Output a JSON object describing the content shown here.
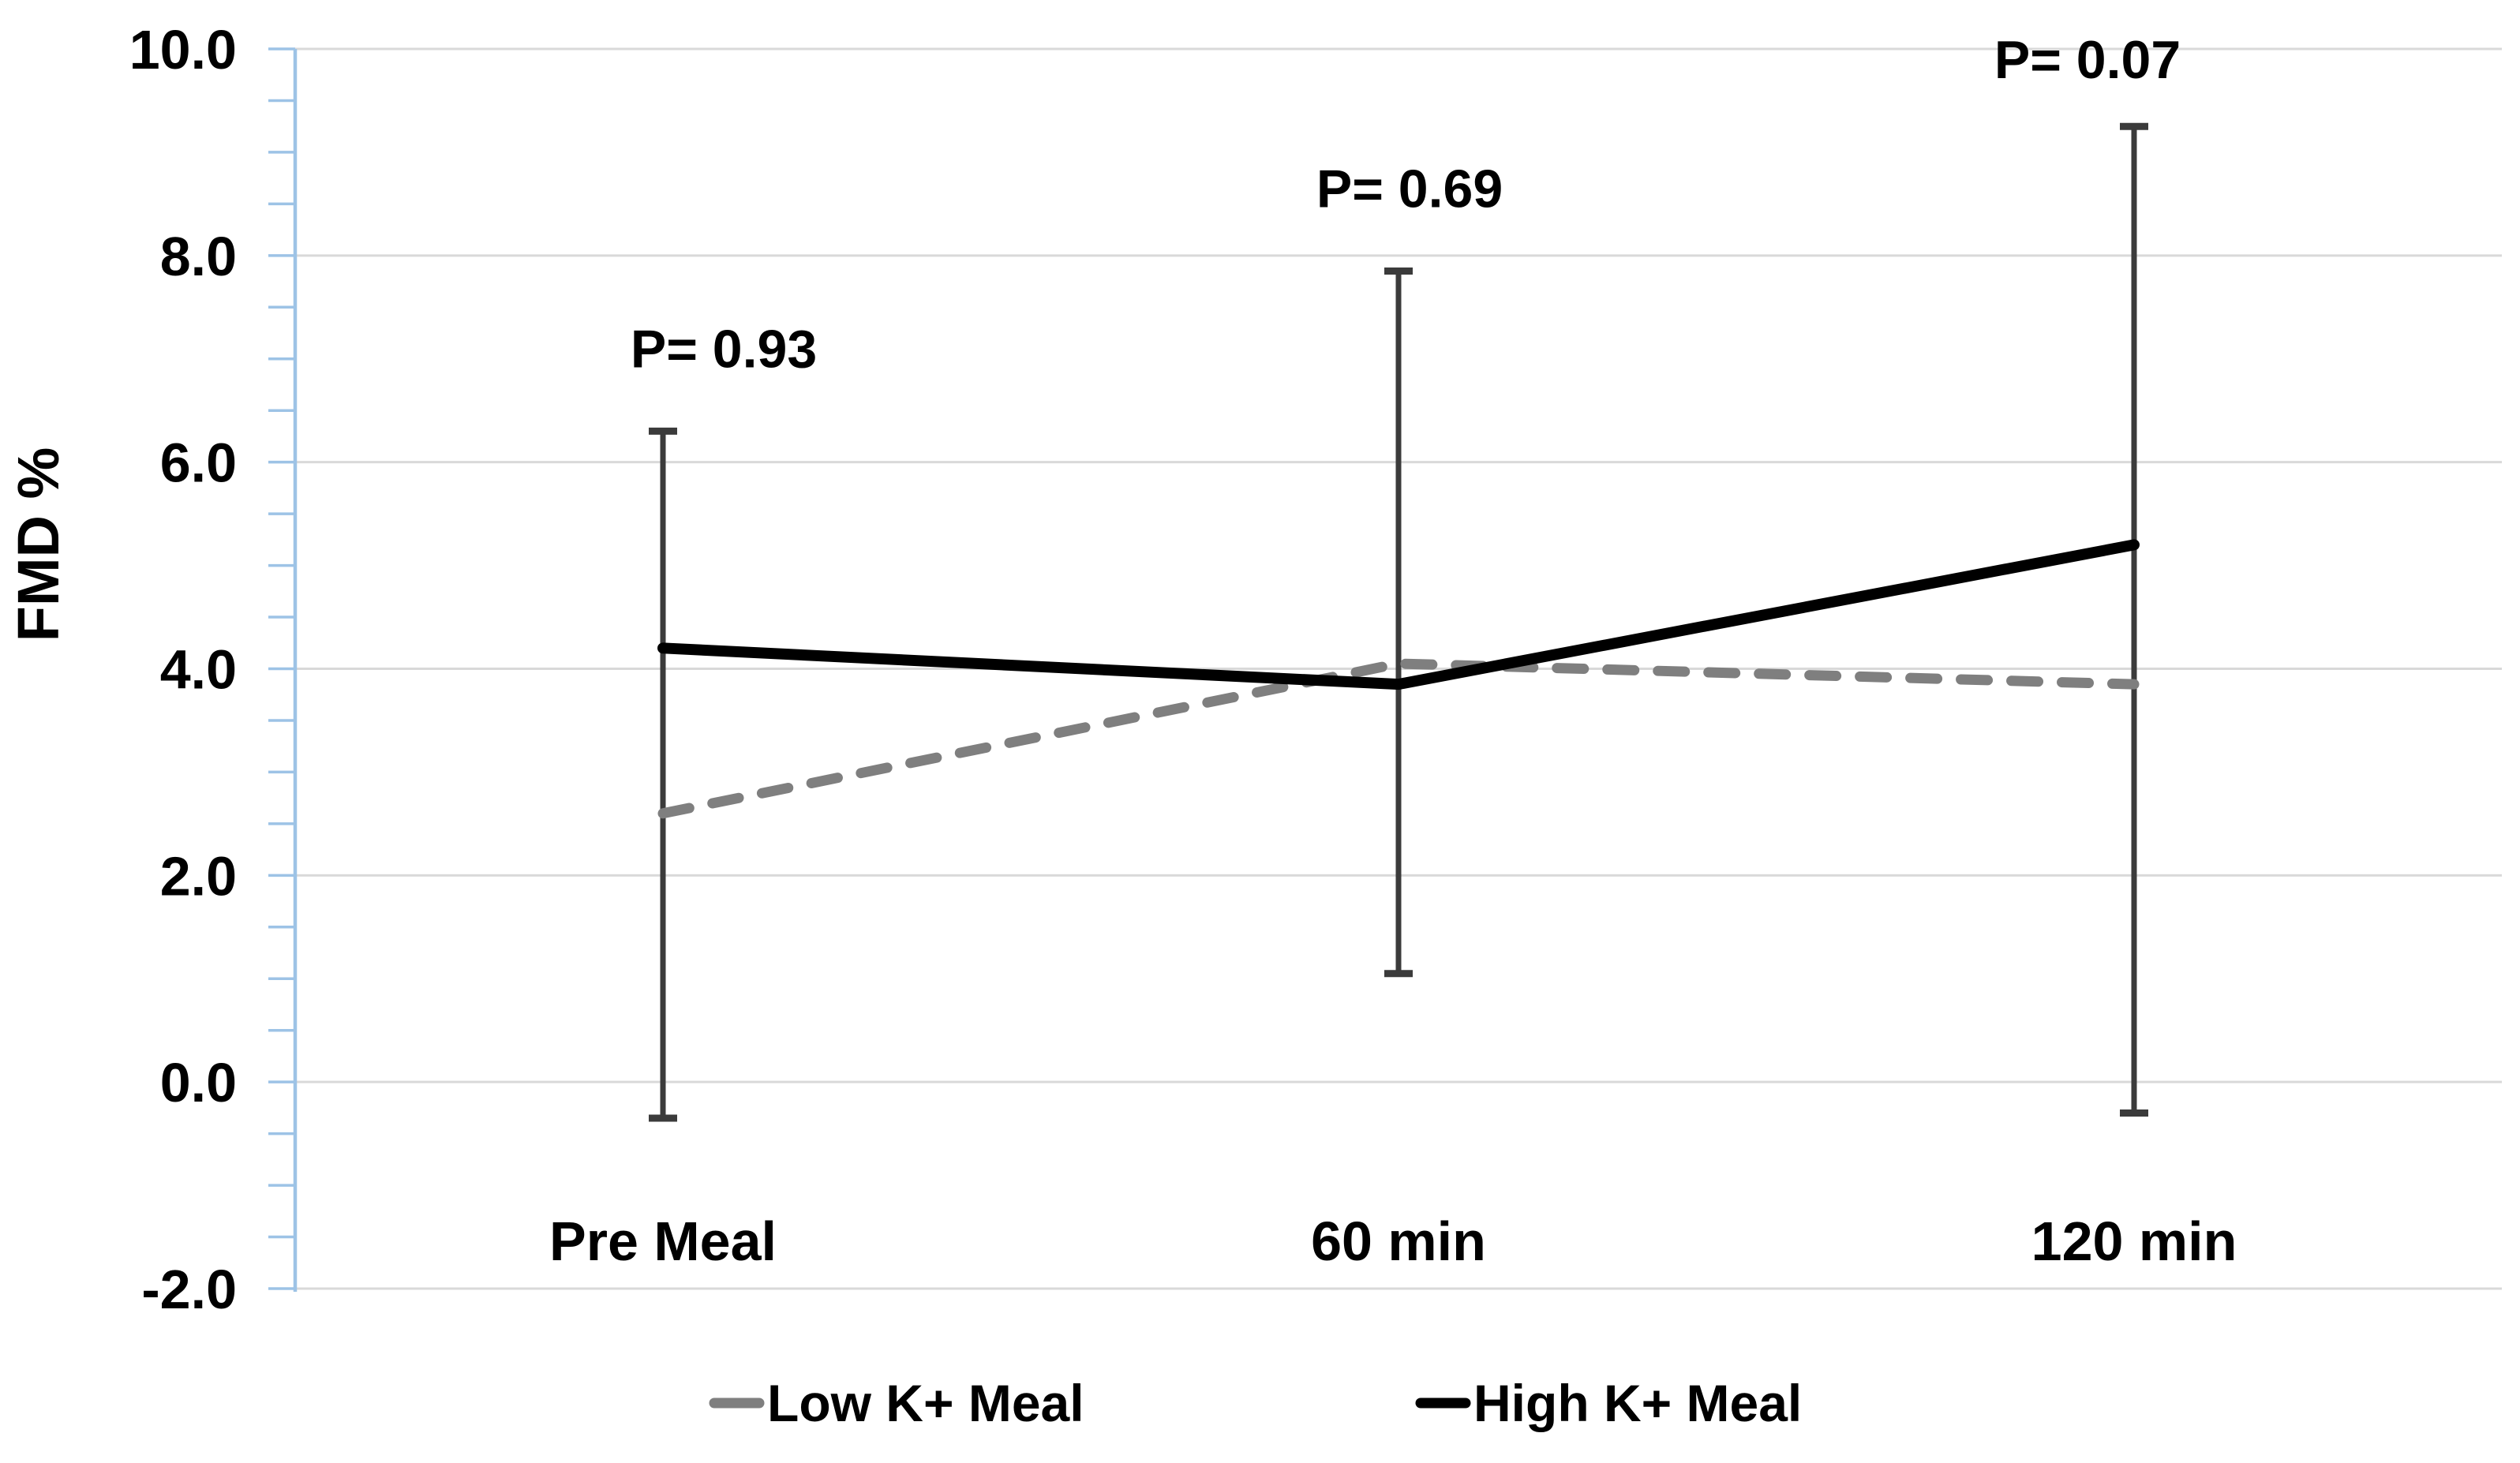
{
  "chart_data": {
    "type": "line",
    "categories": [
      "Pre Meal",
      "60 min",
      "120 min"
    ],
    "series": [
      {
        "name": "Low K+ Meal",
        "style": "dashed",
        "color": "#7F7F7F",
        "values": [
          2.6,
          4.05,
          3.85
        ]
      },
      {
        "name": "High K+ Meal",
        "style": "solid",
        "color": "#000000",
        "values": [
          4.2,
          3.85,
          5.2
        ]
      }
    ],
    "error_bars": [
      {
        "category": "Pre Meal",
        "top": 6.3,
        "bottom": -0.35
      },
      {
        "category": "60 min",
        "top": 7.85,
        "bottom": 1.05
      },
      {
        "category": "120 min",
        "top": 9.25,
        "bottom": -0.3
      }
    ],
    "annotations": [
      {
        "text": "P= 0.93",
        "category_index": 0,
        "y": 7.1,
        "dx": 77
      },
      {
        "text": "P= 0.69",
        "category_index": 1,
        "y": 8.65,
        "dx": 14
      },
      {
        "text": "P= 0.07",
        "category_index": 2,
        "y": 9.9,
        "dx": -59
      }
    ],
    "title": "",
    "xlabel": "",
    "ylabel": "FMD %",
    "ylim": [
      -2,
      10
    ],
    "y_major_step": 2,
    "y_minor_step": 0.5,
    "y_tick_labels": [
      "10.0",
      "8.0",
      "6.0",
      "4.0",
      "2.0",
      "0.0",
      "-2.0"
    ],
    "grid": true,
    "legend_position": "bottom",
    "legend": [
      "Low K+ Meal",
      "High K+ Meal"
    ]
  },
  "colors": {
    "axis": "#9DC3E6",
    "gridline": "#D9D9D9",
    "error_bar": "#3B3B3B",
    "series_low": "#7F7F7F",
    "series_high": "#000000",
    "text": "#000000",
    "background": "#FFFFFF"
  }
}
